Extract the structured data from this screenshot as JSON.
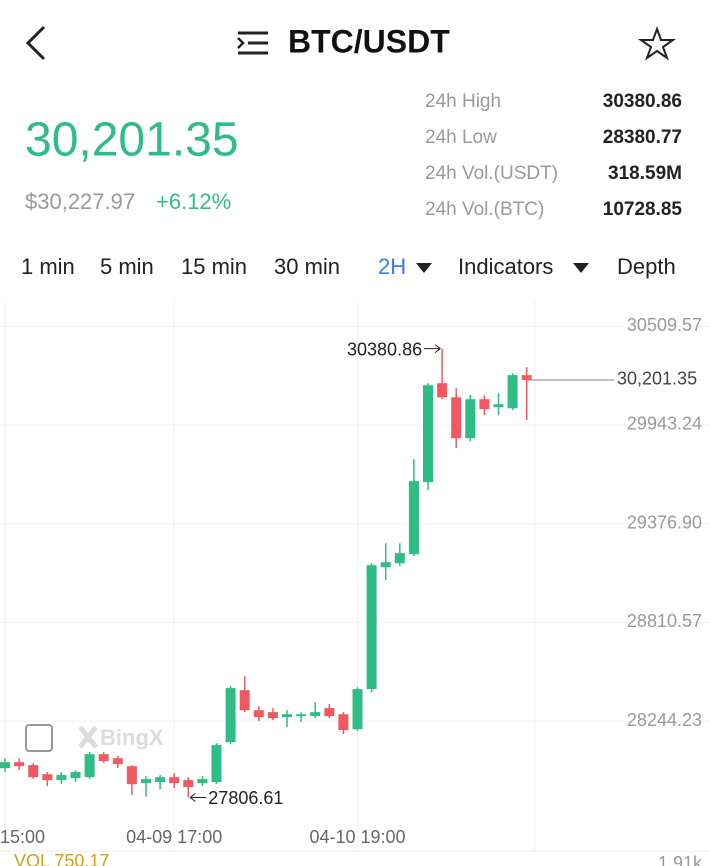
{
  "header": {
    "title": "BTC/USDT"
  },
  "ticker": {
    "price": "30,201.35",
    "usd_price": "$30,227.97",
    "change": "+6.12%"
  },
  "stats": [
    {
      "label": "24h High",
      "value": "30380.86"
    },
    {
      "label": "24h Low",
      "value": "28380.77"
    },
    {
      "label": "24h Vol.(USDT)",
      "value": "318.59M"
    },
    {
      "label": "24h Vol.(BTC)",
      "value": "10728.85"
    }
  ],
  "intervals": [
    "1 min",
    "5 min",
    "15 min",
    "30 min",
    "2H",
    "Indicators",
    "Depth"
  ],
  "watermark": "BingX",
  "chart_data": {
    "type": "candlestick",
    "up_color": "#2ebd85",
    "down_color": "#ef5a62",
    "categories": [
      "15:00",
      null,
      null,
      null,
      null,
      null,
      null,
      null,
      null,
      null,
      null,
      null,
      "04-09 17:00",
      null,
      null,
      null,
      null,
      null,
      null,
      null,
      null,
      null,
      null,
      null,
      null,
      "04-10 19:00",
      null,
      null,
      null,
      null,
      null,
      null,
      null,
      null,
      null,
      null,
      null,
      null
    ],
    "open": [
      27975,
      28009,
      27992,
      27940,
      27906,
      27917,
      27923,
      28055,
      28032,
      27986,
      27889,
      27895,
      27923,
      27906,
      27889,
      27895,
      28124,
      28422,
      28307,
      28296,
      28267,
      28273,
      28273,
      28319,
      28284,
      28198,
      28428,
      29127,
      29150,
      29202,
      29615,
      30183,
      30102,
      29867,
      30091,
      30045,
      30039,
      30229
    ],
    "high": [
      28032,
      28032,
      28003,
      27952,
      27952,
      27963,
      28067,
      28067,
      28044,
      27992,
      27929,
      27935,
      27946,
      27923,
      27929,
      28118,
      28445,
      28502,
      28330,
      28319,
      28307,
      28296,
      28353,
      28342,
      28296,
      28439,
      29150,
      29265,
      29265,
      29747,
      30183,
      30380.86,
      30154,
      30114,
      30114,
      30125,
      30240,
      30275
    ],
    "low": [
      27952,
      27963,
      27912,
      27872,
      27883,
      27895,
      27912,
      28003,
      27975,
      27820,
      27812,
      27854,
      27860,
      27806.61,
      27872,
      27883,
      28112,
      28296,
      28244,
      28250,
      28210,
      28239,
      28262,
      28262,
      28170,
      28187,
      28411,
      29053,
      29133,
      29191,
      29569,
      30091,
      29810,
      29850,
      29999,
      29999,
      30028,
      29971
    ],
    "close": [
      28009,
      27986,
      27923,
      27906,
      27935,
      27952,
      28055,
      28015,
      27998,
      27883,
      27912,
      27923,
      27889,
      27866,
      27912,
      28107,
      28434,
      28307,
      28267,
      28262,
      28284,
      28284,
      28296,
      28273,
      28193,
      28428,
      29139,
      29156,
      29208,
      29621,
      30171,
      30102,
      29867,
      30091,
      30034,
      30062,
      30229,
      30201.35
    ],
    "ylim": [
      27620,
      30660
    ],
    "yticks": [
      30509.57,
      29943.24,
      {
        "value": 29376.9,
        "label": "29376.90"
      },
      28810.57,
      28244.23
    ],
    "grid": true,
    "current_price": {
      "value": 30201.35,
      "label": "30,201.35"
    },
    "max_label": 30380.86,
    "min_label": 27806.61,
    "volume_label": "VOL 750.17",
    "volume_axis_label": "1.91k"
  }
}
